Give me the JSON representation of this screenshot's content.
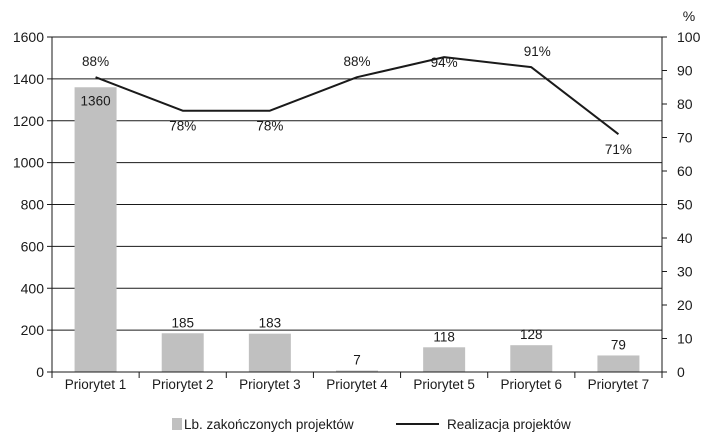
{
  "chart_data": {
    "type": "bar",
    "categories": [
      "Priorytet 1",
      "Priorytet 2",
      "Priorytet 3",
      "Priorytet 4",
      "Priorytet 5",
      "Priorytet 6",
      "Priorytet 7"
    ],
    "series": [
      {
        "name": "Lb. zakończonych projektów",
        "type": "bar",
        "axis": "left",
        "color": "#c0c0c0",
        "values": [
          1360,
          185,
          183,
          7,
          118,
          128,
          79
        ],
        "labels": [
          "1360",
          "185",
          "183",
          "7",
          "118",
          "128",
          "79"
        ]
      },
      {
        "name": "Realizacja projektów",
        "type": "line",
        "axis": "right",
        "color": "#1a1a1a",
        "values": [
          88,
          78,
          78,
          88,
          94,
          91,
          71
        ],
        "labels": [
          "88%",
          "78%",
          "78%",
          "88%",
          "94%",
          "91%",
          "71%"
        ]
      }
    ],
    "title": "",
    "y_left": {
      "min": 0,
      "max": 1600,
      "step": 200,
      "ticks": [
        "0",
        "200",
        "400",
        "600",
        "800",
        "1000",
        "1200",
        "1400",
        "1600"
      ]
    },
    "y_right": {
      "min": 0,
      "max": 100,
      "step": 10,
      "unit": "%",
      "ticks": [
        "0",
        "10",
        "20",
        "30",
        "40",
        "50",
        "60",
        "70",
        "80",
        "90",
        "100"
      ]
    },
    "grid": true,
    "legend_position": "bottom-center"
  }
}
